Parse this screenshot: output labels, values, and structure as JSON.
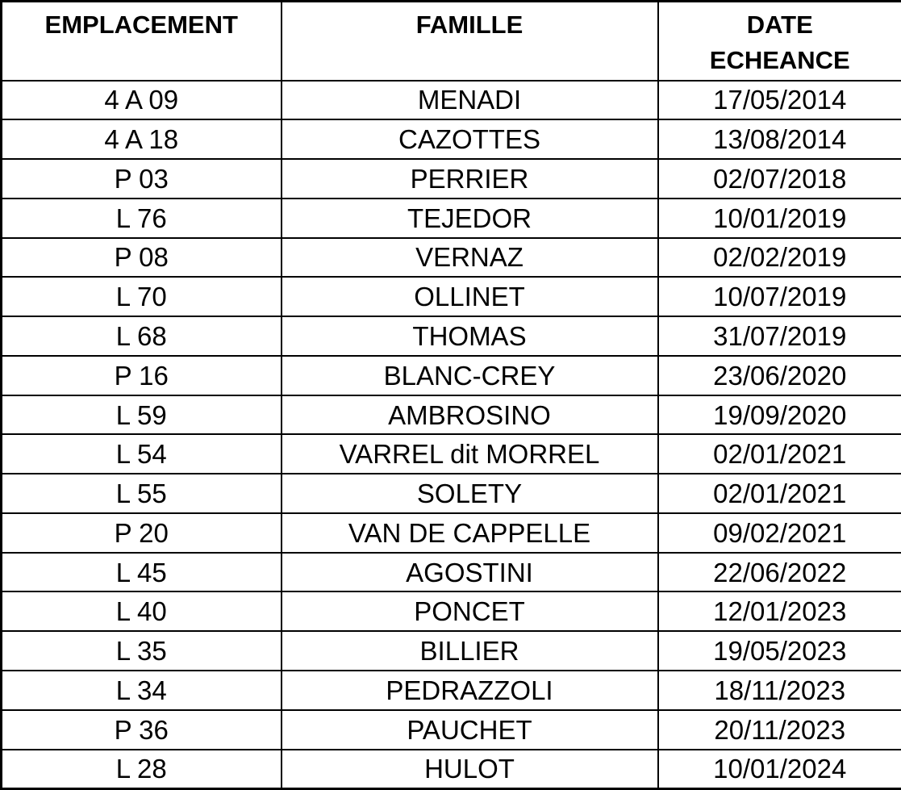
{
  "colors": {
    "background": "#ffffff",
    "text": "#000000",
    "border": "#000000"
  },
  "table": {
    "columns": [
      {
        "key": "emplacement",
        "label": "EMPLACEMENT"
      },
      {
        "key": "famille",
        "label": "FAMILLE"
      },
      {
        "key": "date_echeance",
        "label": "DATE\nECHEANCE"
      }
    ],
    "rows": [
      {
        "emplacement": "4 A 09",
        "famille": "MENADI",
        "date_echeance": "17/05/2014"
      },
      {
        "emplacement": "4 A 18",
        "famille": "CAZOTTES",
        "date_echeance": "13/08/2014"
      },
      {
        "emplacement": "P 03",
        "famille": "PERRIER",
        "date_echeance": "02/07/2018"
      },
      {
        "emplacement": "L 76",
        "famille": "TEJEDOR",
        "date_echeance": "10/01/2019"
      },
      {
        "emplacement": "P 08",
        "famille": "VERNAZ",
        "date_echeance": "02/02/2019"
      },
      {
        "emplacement": "L 70",
        "famille": "OLLINET",
        "date_echeance": "10/07/2019"
      },
      {
        "emplacement": "L 68",
        "famille": "THOMAS",
        "date_echeance": "31/07/2019"
      },
      {
        "emplacement": "P 16",
        "famille": "BLANC-CREY",
        "date_echeance": "23/06/2020"
      },
      {
        "emplacement": "L 59",
        "famille": "AMBROSINO",
        "date_echeance": "19/09/2020"
      },
      {
        "emplacement": "L 54",
        "famille": "VARREL dit MORREL",
        "date_echeance": "02/01/2021"
      },
      {
        "emplacement": "L 55",
        "famille": "SOLETY",
        "date_echeance": "02/01/2021"
      },
      {
        "emplacement": "P 20",
        "famille": "VAN DE CAPPELLE",
        "date_echeance": "09/02/2021"
      },
      {
        "emplacement": "L 45",
        "famille": "AGOSTINI",
        "date_echeance": "22/06/2022"
      },
      {
        "emplacement": "L 40",
        "famille": "PONCET",
        "date_echeance": "12/01/2023"
      },
      {
        "emplacement": "L 35",
        "famille": "BILLIER",
        "date_echeance": "19/05/2023"
      },
      {
        "emplacement": "L 34",
        "famille": "PEDRAZZOLI",
        "date_echeance": "18/11/2023"
      },
      {
        "emplacement": "P 36",
        "famille": "PAUCHET",
        "date_echeance": "20/11/2023"
      },
      {
        "emplacement": "L 28",
        "famille": "HULOT",
        "date_echeance": "10/01/2024"
      }
    ]
  }
}
